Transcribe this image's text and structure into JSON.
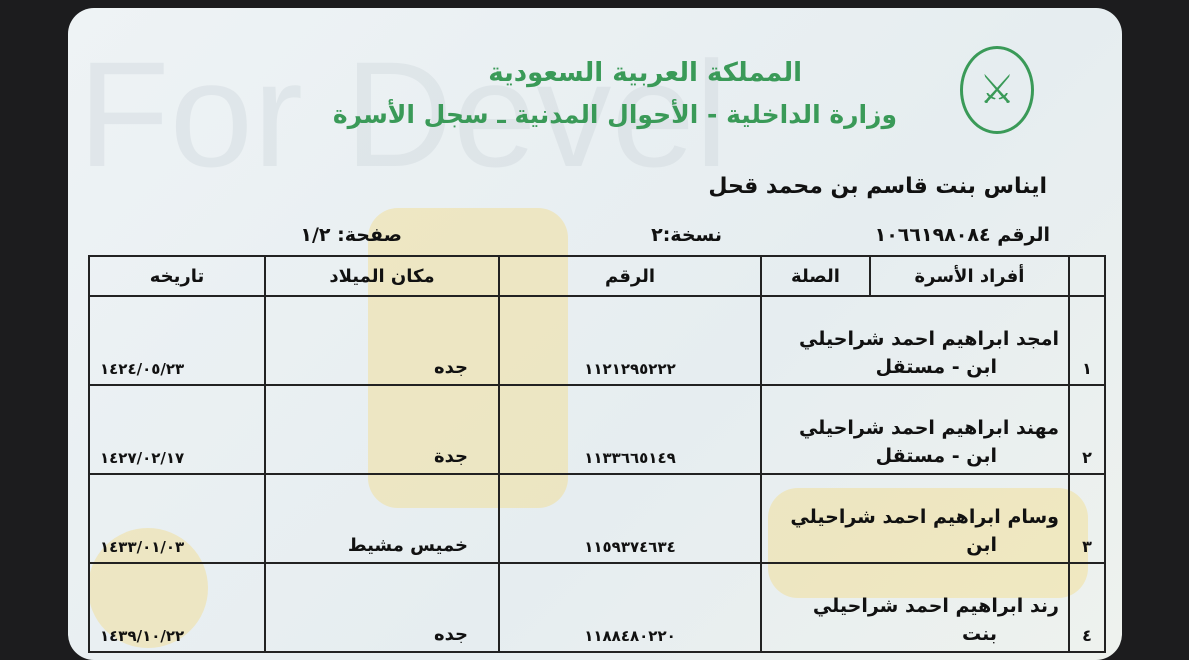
{
  "header": {
    "title": "المملكة العربية السعودية",
    "subtitle": "وزارة الداخلية - الأحوال المدنية ـ سجل الأسرة",
    "emblem": "saudi-emblem-icon",
    "accent": "#3a9a58"
  },
  "owner": {
    "name": "ايناس بنت قاسم بن محمد قحل",
    "id_label": "الرقم",
    "id": "١٠٦٦١٩٨٠٨٤",
    "copy_label": "نسخة:",
    "copy": "٢",
    "page_label": "صفحة:",
    "page": "١/٢"
  },
  "table": {
    "headers": [
      "",
      "أفراد الأسرة",
      "الصلة",
      "الرقم",
      "مكان الميلاد",
      "تاريخه"
    ],
    "rows": [
      {
        "idx": "١",
        "name": "امجد ابراهيم احمد شراحيلي",
        "relation": "ابن - مستقل",
        "number": "١١٢١٢٩٥٢٢٢",
        "place": "جده",
        "date": "١٤٢٤/٠٥/٢٣"
      },
      {
        "idx": "٢",
        "name": "مهند ابراهيم احمد شراحيلي",
        "relation": "ابن - مستقل",
        "number": "١١٣٣٦٦٥١٤٩",
        "place": "جدة",
        "date": "١٤٢٧/٠٢/١٧"
      },
      {
        "idx": "٣",
        "name": "وسام ابراهيم احمد شراحيلي",
        "relation": "ابن",
        "number": "١١٥٩٣٧٤٦٣٤",
        "place": "خميس مشيط",
        "date": "١٤٣٣/٠١/٠٣"
      },
      {
        "idx": "٤",
        "name": "رند ابراهيم احمد شراحيلي",
        "relation": "بنت",
        "number": "١١٨٨٤٨٠٢٢٠",
        "place": "جده",
        "date": "١٤٣٩/١٠/٢٢"
      }
    ]
  }
}
